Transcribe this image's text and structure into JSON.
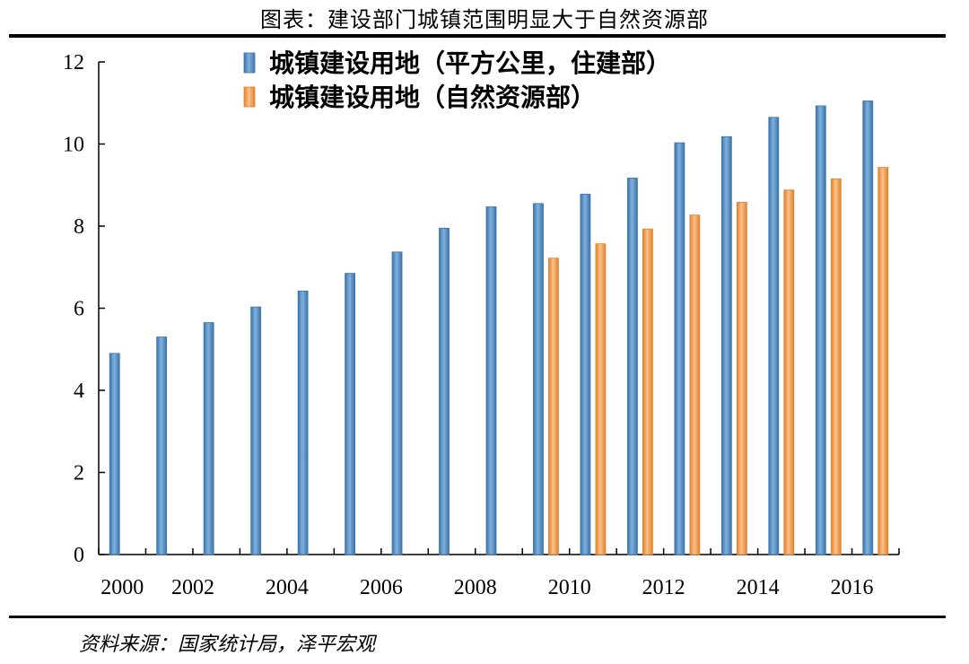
{
  "page": {
    "title": "图表：建设部门城镇范围明显大于自然资源部",
    "source": "资料来源：国家统计局，泽平宏观"
  },
  "colors": {
    "series1": "#5b95c9",
    "series1_dark": "#3b74a9",
    "series2": "#f5a35c",
    "series2_dark": "#e0822e"
  },
  "chart_data": {
    "type": "bar",
    "title": "",
    "xlabel": "",
    "ylabel": "",
    "ylim": [
      0,
      12
    ],
    "yticks": [
      0,
      2,
      4,
      6,
      8,
      10,
      12
    ],
    "categories": [
      "2000",
      "2001",
      "2002",
      "2003",
      "2004",
      "2005",
      "2006",
      "2007",
      "2008",
      "2009",
      "2010",
      "2011",
      "2012",
      "2013",
      "2014",
      "2015",
      "2016"
    ],
    "xtick_labels": [
      "2000",
      "2002",
      "2004",
      "2006",
      "2008",
      "2010",
      "2012",
      "2014",
      "2016"
    ],
    "legend_position": "top-center",
    "series": [
      {
        "name": "城镇建设用地（平方公里，住建部）",
        "values": [
          4.9,
          5.3,
          5.65,
          6.03,
          6.42,
          6.85,
          7.37,
          7.95,
          8.47,
          8.55,
          8.78,
          9.17,
          10.03,
          10.18,
          10.65,
          10.93,
          11.05
        ]
      },
      {
        "name": "城镇建设用地（自然资源部）",
        "values": [
          null,
          null,
          null,
          null,
          null,
          null,
          null,
          null,
          null,
          7.22,
          7.57,
          7.93,
          8.27,
          8.58,
          8.88,
          9.15,
          9.43
        ]
      }
    ]
  }
}
